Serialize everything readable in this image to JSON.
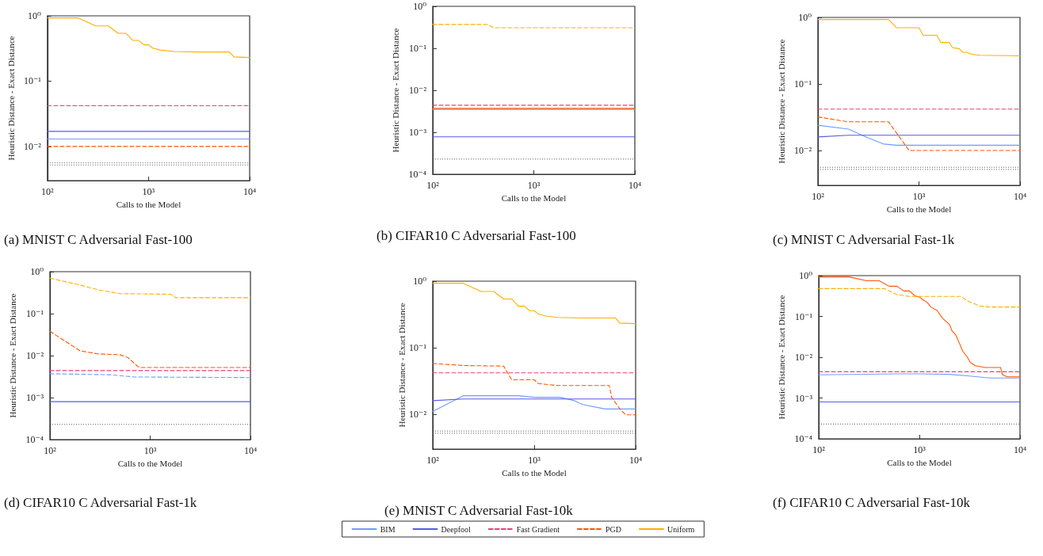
{
  "chart_data": [
    {
      "type": "line",
      "title": "(a) MNIST C Adversarial Fast-100",
      "xlabel": "Calls to the Model",
      "ylabel": "Heuristic Distance - Exact Distance",
      "log": "xy",
      "xlim": [
        100,
        10000
      ],
      "ylim": [
        0.003,
        1
      ],
      "xticks": [
        {
          "value": 100,
          "label": "10²"
        },
        {
          "value": 1000,
          "label": "10³"
        },
        {
          "value": 10000,
          "label": "10⁴"
        }
      ],
      "yticks": [
        {
          "value": 0.01,
          "label": "10⁻²"
        },
        {
          "value": 0.1,
          "label": "10⁻¹"
        },
        {
          "value": 1,
          "label": "10⁰"
        }
      ],
      "series": [
        {
          "color": "#6f9cff",
          "line_style": "solid",
          "x": [
            100,
            10000
          ],
          "values": [
            0.013,
            0.013
          ]
        },
        {
          "color": "#5a5ae8",
          "line_style": "solid",
          "x": [
            100,
            200,
            10000
          ],
          "values": [
            0.017,
            0.017,
            0.017
          ]
        },
        {
          "color": "#e8407a",
          "line_style": "dashed",
          "x": [
            100,
            10000
          ],
          "values": [
            0.042,
            0.042
          ]
        },
        {
          "color": "#ff5500",
          "line_style": "dashed",
          "x": [
            100,
            10000
          ],
          "values": [
            0.01,
            0.01
          ]
        },
        {
          "color": "#ffae00",
          "line_style": "solid",
          "x": [
            100,
            200,
            300,
            400,
            500,
            600,
            700,
            800,
            900,
            1000,
            1100,
            1300,
            1800,
            3000,
            6300,
            7000,
            10000
          ],
          "values": [
            0.93,
            0.93,
            0.7,
            0.7,
            0.54,
            0.54,
            0.42,
            0.42,
            0.36,
            0.36,
            0.32,
            0.3,
            0.285,
            0.28,
            0.28,
            0.235,
            0.23
          ]
        }
      ],
      "ref_lines": [
        {
          "axis": "y",
          "value": 0.0056,
          "label": null,
          "color": "#333333",
          "line_style": "dotted"
        },
        {
          "axis": "y",
          "value": 0.0052,
          "label": null,
          "color": "#333333",
          "line_style": "dotted"
        }
      ]
    },
    {
      "type": "line",
      "title": "(b) CIFAR10 C Adversarial Fast-100",
      "xlabel": "Calls to the Model",
      "ylabel": "Heuristic Distance - Exact Distance",
      "log": "xy",
      "xlim": [
        100,
        10000
      ],
      "ylim": [
        0.0001,
        1
      ],
      "xticks": [
        {
          "value": 100,
          "label": "10²"
        },
        {
          "value": 1000,
          "label": "10³"
        },
        {
          "value": 10000,
          "label": "10⁴"
        }
      ],
      "yticks": [
        {
          "value": 0.0001,
          "label": "10⁻⁴"
        },
        {
          "value": 0.001,
          "label": "10⁻³"
        },
        {
          "value": 0.01,
          "label": "10⁻²"
        },
        {
          "value": 0.1,
          "label": "10⁻¹"
        },
        {
          "value": 1,
          "label": "10⁰"
        }
      ],
      "series": [
        {
          "color": "#6f9cff",
          "line_style": "solid",
          "x": [
            100,
            10000
          ],
          "values": [
            0.0035,
            0.0035
          ]
        },
        {
          "color": "#5a5ae8",
          "line_style": "solid",
          "x": [
            100,
            10000
          ],
          "values": [
            0.00078,
            0.00078
          ]
        },
        {
          "color": "#e8407a",
          "line_style": "dashed",
          "x": [
            100,
            10000
          ],
          "values": [
            0.0044,
            0.0044
          ]
        },
        {
          "color": "#ff5500",
          "line_style": "solid",
          "x": [
            100,
            10000
          ],
          "values": [
            0.0037,
            0.0037
          ]
        },
        {
          "color": "#ffae00",
          "line_style": "dashed",
          "x": [
            100,
            350,
            400,
            10000
          ],
          "values": [
            0.37,
            0.37,
            0.31,
            0.31
          ]
        }
      ],
      "ref_lines": [
        {
          "axis": "y",
          "value": 0.00023,
          "label": null,
          "color": "#333333",
          "line_style": "dotted"
        }
      ]
    },
    {
      "type": "line",
      "title": "(c) MNIST C Adversarial Fast-1k",
      "xlabel": "Calls to the Model",
      "ylabel": "Heuristic Distance - Exact Distance",
      "log": "xy",
      "xlim": [
        100,
        10000
      ],
      "ylim": [
        0.003,
        1
      ],
      "xticks": [
        {
          "value": 100,
          "label": "10²"
        },
        {
          "value": 1000,
          "label": "10³"
        },
        {
          "value": 10000,
          "label": "10⁴"
        }
      ],
      "yticks": [
        {
          "value": 0.01,
          "label": "10⁻²"
        },
        {
          "value": 0.1,
          "label": "10⁻¹"
        },
        {
          "value": 1,
          "label": "10⁰"
        }
      ],
      "series": [
        {
          "color": "#6f9cff",
          "line_style": "solid",
          "x": [
            100,
            200,
            300,
            450,
            600,
            10000
          ],
          "values": [
            0.024,
            0.021,
            0.016,
            0.0125,
            0.012,
            0.012
          ]
        },
        {
          "color": "#5a5ae8",
          "line_style": "solid",
          "x": [
            100,
            200,
            10000
          ],
          "values": [
            0.016,
            0.017,
            0.017
          ]
        },
        {
          "color": "#e8407a",
          "line_style": "dashed",
          "x": [
            100,
            10000
          ],
          "values": [
            0.042,
            0.042
          ]
        },
        {
          "color": "#ff5500",
          "line_style": "dashed",
          "x": [
            100,
            200,
            500,
            800,
            10000
          ],
          "values": [
            0.032,
            0.027,
            0.027,
            0.01,
            0.01
          ]
        },
        {
          "color": "#ffae00",
          "line_style": "solid",
          "x": [
            100,
            500,
            600,
            1000,
            1100,
            1500,
            1650,
            2000,
            2150,
            2500,
            2700,
            3000,
            3300,
            4000,
            10000
          ],
          "values": [
            0.93,
            0.93,
            0.7,
            0.7,
            0.54,
            0.54,
            0.42,
            0.42,
            0.35,
            0.34,
            0.3,
            0.3,
            0.28,
            0.27,
            0.265
          ]
        }
      ],
      "ref_lines": [
        {
          "axis": "y",
          "value": 0.0056,
          "label": null,
          "color": "#333333",
          "line_style": "dotted"
        },
        {
          "axis": "y",
          "value": 0.0052,
          "label": null,
          "color": "#333333",
          "line_style": "dotted"
        }
      ]
    },
    {
      "type": "line",
      "title": "(d) CIFAR10 C Adversarial Fast-1k",
      "xlabel": "Calls to the Model",
      "ylabel": "Heuristic Distance - Exact Distance",
      "log": "xy",
      "xlim": [
        100,
        10000
      ],
      "ylim": [
        0.0001,
        1
      ],
      "xticks": [
        {
          "value": 100,
          "label": "10²"
        },
        {
          "value": 1000,
          "label": "10³"
        },
        {
          "value": 10000,
          "label": "10⁴"
        }
      ],
      "yticks": [
        {
          "value": 0.0001,
          "label": "10⁻⁴"
        },
        {
          "value": 0.001,
          "label": "10⁻³"
        },
        {
          "value": 0.01,
          "label": "10⁻²"
        },
        {
          "value": 0.1,
          "label": "10⁻¹"
        },
        {
          "value": 1,
          "label": "10⁰"
        }
      ],
      "series": [
        {
          "color": "#6f9cff",
          "line_style": "dashed",
          "x": [
            100,
            400,
            700,
            10000
          ],
          "values": [
            0.0037,
            0.0035,
            0.0031,
            0.003
          ]
        },
        {
          "color": "#5a5ae8",
          "line_style": "solid",
          "x": [
            100,
            10000
          ],
          "values": [
            0.0008,
            0.0008
          ]
        },
        {
          "color": "#e8407a",
          "line_style": "dashed",
          "x": [
            100,
            10000
          ],
          "values": [
            0.0044,
            0.0044
          ]
        },
        {
          "color": "#ff5500",
          "line_style": "dashed",
          "x": [
            100,
            200,
            300,
            500,
            600,
            750,
            800,
            10000
          ],
          "values": [
            0.038,
            0.013,
            0.011,
            0.0105,
            0.009,
            0.0055,
            0.0052,
            0.0052
          ]
        },
        {
          "color": "#ffae00",
          "line_style": "dashed",
          "x": [
            100,
            200,
            300,
            500,
            1600,
            1800,
            10000
          ],
          "values": [
            0.7,
            0.48,
            0.37,
            0.3,
            0.29,
            0.24,
            0.24
          ]
        }
      ],
      "ref_lines": [
        {
          "axis": "y",
          "value": 0.00023,
          "label": null,
          "color": "#333333",
          "line_style": "dotted"
        }
      ]
    },
    {
      "type": "line",
      "title": "(e) MNIST C Adversarial Fast-10k",
      "xlabel": "Calls to the Model",
      "ylabel": "Heuristic Distance - Exact Distance",
      "log": "xy",
      "legend": "bottom",
      "xlim": [
        100,
        10000
      ],
      "ylim": [
        0.003,
        1
      ],
      "xticks": [
        {
          "value": 100,
          "label": "10²"
        },
        {
          "value": 1000,
          "label": "10³"
        },
        {
          "value": 10000,
          "label": "10⁴"
        }
      ],
      "yticks": [
        {
          "value": 0.01,
          "label": "10⁻²"
        },
        {
          "value": 0.1,
          "label": "10⁻¹"
        },
        {
          "value": 1,
          "label": "10⁰"
        }
      ],
      "series": [
        {
          "name": "BIM",
          "color": "#6f9cff",
          "line_style": "solid",
          "x": [
            100,
            200,
            300,
            700,
            1000,
            1800,
            2500,
            3000,
            5000,
            10000
          ],
          "values": [
            0.011,
            0.019,
            0.019,
            0.019,
            0.018,
            0.018,
            0.016,
            0.014,
            0.012,
            0.012
          ]
        },
        {
          "name": "Deepfool",
          "color": "#5a5ae8",
          "line_style": "solid",
          "x": [
            100,
            200,
            10000
          ],
          "values": [
            0.016,
            0.017,
            0.017
          ]
        },
        {
          "name": "Fast Gradient",
          "color": "#e8407a",
          "line_style": "dashed",
          "x": [
            100,
            10000
          ],
          "values": [
            0.042,
            0.042
          ]
        },
        {
          "name": "PGD",
          "color": "#ff5500",
          "line_style": "dashed",
          "x": [
            100,
            200,
            500,
            600,
            1000,
            1100,
            1700,
            5500,
            5800,
            7000,
            8000,
            10000
          ],
          "values": [
            0.058,
            0.054,
            0.053,
            0.033,
            0.033,
            0.029,
            0.027,
            0.027,
            0.018,
            0.012,
            0.0098,
            0.0098
          ]
        },
        {
          "name": "Uniform",
          "color": "#ffae00",
          "line_style": "solid",
          "x": [
            100,
            200,
            300,
            400,
            500,
            600,
            700,
            800,
            900,
            1000,
            1100,
            1300,
            1700,
            3000,
            6300,
            7000,
            10000
          ],
          "values": [
            0.93,
            0.93,
            0.7,
            0.7,
            0.54,
            0.54,
            0.42,
            0.42,
            0.36,
            0.36,
            0.32,
            0.3,
            0.285,
            0.28,
            0.28,
            0.235,
            0.23
          ]
        }
      ],
      "ref_lines": [
        {
          "axis": "y",
          "value": 0.0056,
          "label": null,
          "color": "#333333",
          "line_style": "dotted"
        },
        {
          "axis": "y",
          "value": 0.0052,
          "label": null,
          "color": "#333333",
          "line_style": "dotted"
        }
      ]
    },
    {
      "type": "line",
      "title": "(f) CIFAR10 C Adversarial Fast-10k",
      "xlabel": "Calls to the Model",
      "ylabel": "Heuristic Distance - Exact Distance",
      "log": "xy",
      "xlim": [
        100,
        10000
      ],
      "ylim": [
        0.0001,
        1
      ],
      "xticks": [
        {
          "value": 100,
          "label": "10²"
        },
        {
          "value": 1000,
          "label": "10³"
        },
        {
          "value": 10000,
          "label": "10⁴"
        }
      ],
      "yticks": [
        {
          "value": 0.0001,
          "label": "10⁻⁴"
        },
        {
          "value": 0.001,
          "label": "10⁻³"
        },
        {
          "value": 0.01,
          "label": "10⁻²"
        },
        {
          "value": 0.1,
          "label": "10⁻¹"
        },
        {
          "value": 1,
          "label": "10⁰"
        }
      ],
      "series": [
        {
          "color": "#6f9cff",
          "line_style": "solid",
          "x": [
            100,
            600,
            1000,
            2000,
            3000,
            5000,
            10000
          ],
          "values": [
            0.0037,
            0.0039,
            0.0039,
            0.0038,
            0.0035,
            0.0031,
            0.0031
          ]
        },
        {
          "color": "#5a5ae8",
          "line_style": "solid",
          "x": [
            100,
            10000
          ],
          "values": [
            0.0008,
            0.0008
          ]
        },
        {
          "color": "#e8407a",
          "line_style": "dashed",
          "x": [
            100,
            10000
          ],
          "values": [
            0.0044,
            0.0044
          ]
        },
        {
          "color": "#ff5500",
          "line_style": "solid",
          "x": [
            100,
            200,
            300,
            400,
            500,
            600,
            700,
            800,
            900,
            1000,
            1100,
            1200,
            1300,
            1500,
            1700,
            2000,
            2100,
            2300,
            2500,
            2700,
            3000,
            3200,
            3600,
            4500,
            6400,
            6700,
            7500,
            10000
          ],
          "values": [
            0.93,
            0.93,
            0.75,
            0.75,
            0.55,
            0.55,
            0.42,
            0.42,
            0.32,
            0.3,
            0.25,
            0.22,
            0.17,
            0.14,
            0.09,
            0.063,
            0.045,
            0.035,
            0.022,
            0.014,
            0.01,
            0.0075,
            0.0062,
            0.0056,
            0.0056,
            0.0037,
            0.0033,
            0.0033
          ]
        },
        {
          "color": "#ffae00",
          "line_style": "dashed",
          "x": [
            100,
            450,
            600,
            800,
            2600,
            3000,
            4000,
            5000,
            10000
          ],
          "values": [
            0.48,
            0.48,
            0.34,
            0.31,
            0.31,
            0.24,
            0.18,
            0.17,
            0.17
          ]
        }
      ],
      "ref_lines": [
        {
          "axis": "y",
          "value": 0.00023,
          "label": null,
          "color": "#333333",
          "line_style": "dotted"
        }
      ]
    }
  ]
}
